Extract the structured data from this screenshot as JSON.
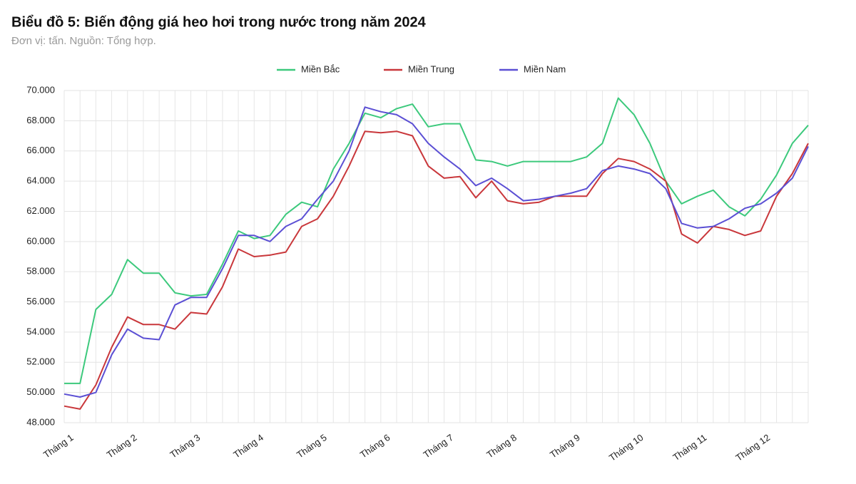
{
  "chart_data": {
    "type": "line",
    "title": "Biểu đồ 5: Biến động giá heo hơi trong nước trong năm 2024",
    "subtitle": "Đơn vị: tấn. Nguồn: Tổng hợp.",
    "categories": [
      "Tháng 1",
      null,
      null,
      null,
      "Tháng 2",
      null,
      null,
      null,
      "Tháng 3",
      null,
      null,
      null,
      "Tháng 4",
      null,
      null,
      null,
      "Tháng 5",
      null,
      null,
      null,
      "Tháng 6",
      null,
      null,
      null,
      "Tháng 7",
      null,
      null,
      null,
      "Tháng 8",
      null,
      null,
      null,
      "Tháng 9",
      null,
      null,
      null,
      "Tháng 10",
      null,
      null,
      null,
      "Tháng 11",
      null,
      null,
      null,
      "Tháng 12",
      null,
      null,
      null
    ],
    "series": [
      {
        "name": "Miền Bắc",
        "color": "#3cc97c",
        "values": [
          50600,
          50600,
          55500,
          56500,
          58800,
          57900,
          57900,
          56600,
          56400,
          56500,
          58500,
          60700,
          60200,
          60400,
          61800,
          62600,
          62300,
          64800,
          66500,
          68500,
          68200,
          68800,
          69100,
          67600,
          67800,
          67800,
          65400,
          65300,
          65000,
          65300,
          65300,
          65300,
          65300,
          65600,
          66500,
          69500,
          68400,
          66500,
          64000,
          62500,
          63000,
          63400,
          62300,
          61700,
          62800,
          64400,
          66500,
          67700
        ]
      },
      {
        "name": "Miền Trung",
        "color": "#c9373b",
        "values": [
          49100,
          48900,
          50500,
          53000,
          55000,
          54500,
          54500,
          54200,
          55300,
          55200,
          57000,
          59500,
          59000,
          59100,
          59300,
          61000,
          61500,
          63000,
          65000,
          67300,
          67200,
          67300,
          67000,
          65000,
          64200,
          64300,
          62900,
          64000,
          62700,
          62500,
          62600,
          63000,
          63000,
          63000,
          64500,
          65500,
          65300,
          64800,
          64000,
          60500,
          59900,
          61000,
          60800,
          60400,
          60700,
          63000,
          64500,
          66500
        ]
      },
      {
        "name": "Miền Nam",
        "color": "#5b4fd4",
        "values": [
          49900,
          49700,
          50000,
          52500,
          54200,
          53600,
          53500,
          55800,
          56300,
          56300,
          58200,
          60400,
          60400,
          60000,
          61000,
          61500,
          62800,
          64000,
          66000,
          68900,
          68600,
          68400,
          67800,
          66500,
          65600,
          64800,
          63700,
          64200,
          63500,
          62700,
          62800,
          63000,
          63200,
          63500,
          64700,
          65000,
          64800,
          64500,
          63500,
          61200,
          60900,
          61000,
          61500,
          62200,
          62500,
          63200,
          64200,
          66300
        ]
      }
    ],
    "ylim": [
      48000,
      70000
    ],
    "yticks": [
      {
        "value": 48000,
        "label": "48.000"
      },
      {
        "value": 50000,
        "label": "50.000"
      },
      {
        "value": 52000,
        "label": "52.000"
      },
      {
        "value": 54000,
        "label": "54.000"
      },
      {
        "value": 56000,
        "label": "56.000"
      },
      {
        "value": 58000,
        "label": "58.000"
      },
      {
        "value": 60000,
        "label": "60.000"
      },
      {
        "value": 62000,
        "label": "62.000"
      },
      {
        "value": 64000,
        "label": "64.000"
      },
      {
        "value": 66000,
        "label": "66.000"
      },
      {
        "value": 68000,
        "label": "68.000"
      },
      {
        "value": 70000,
        "label": "70.000"
      }
    ],
    "grid": true,
    "legend": "top"
  }
}
